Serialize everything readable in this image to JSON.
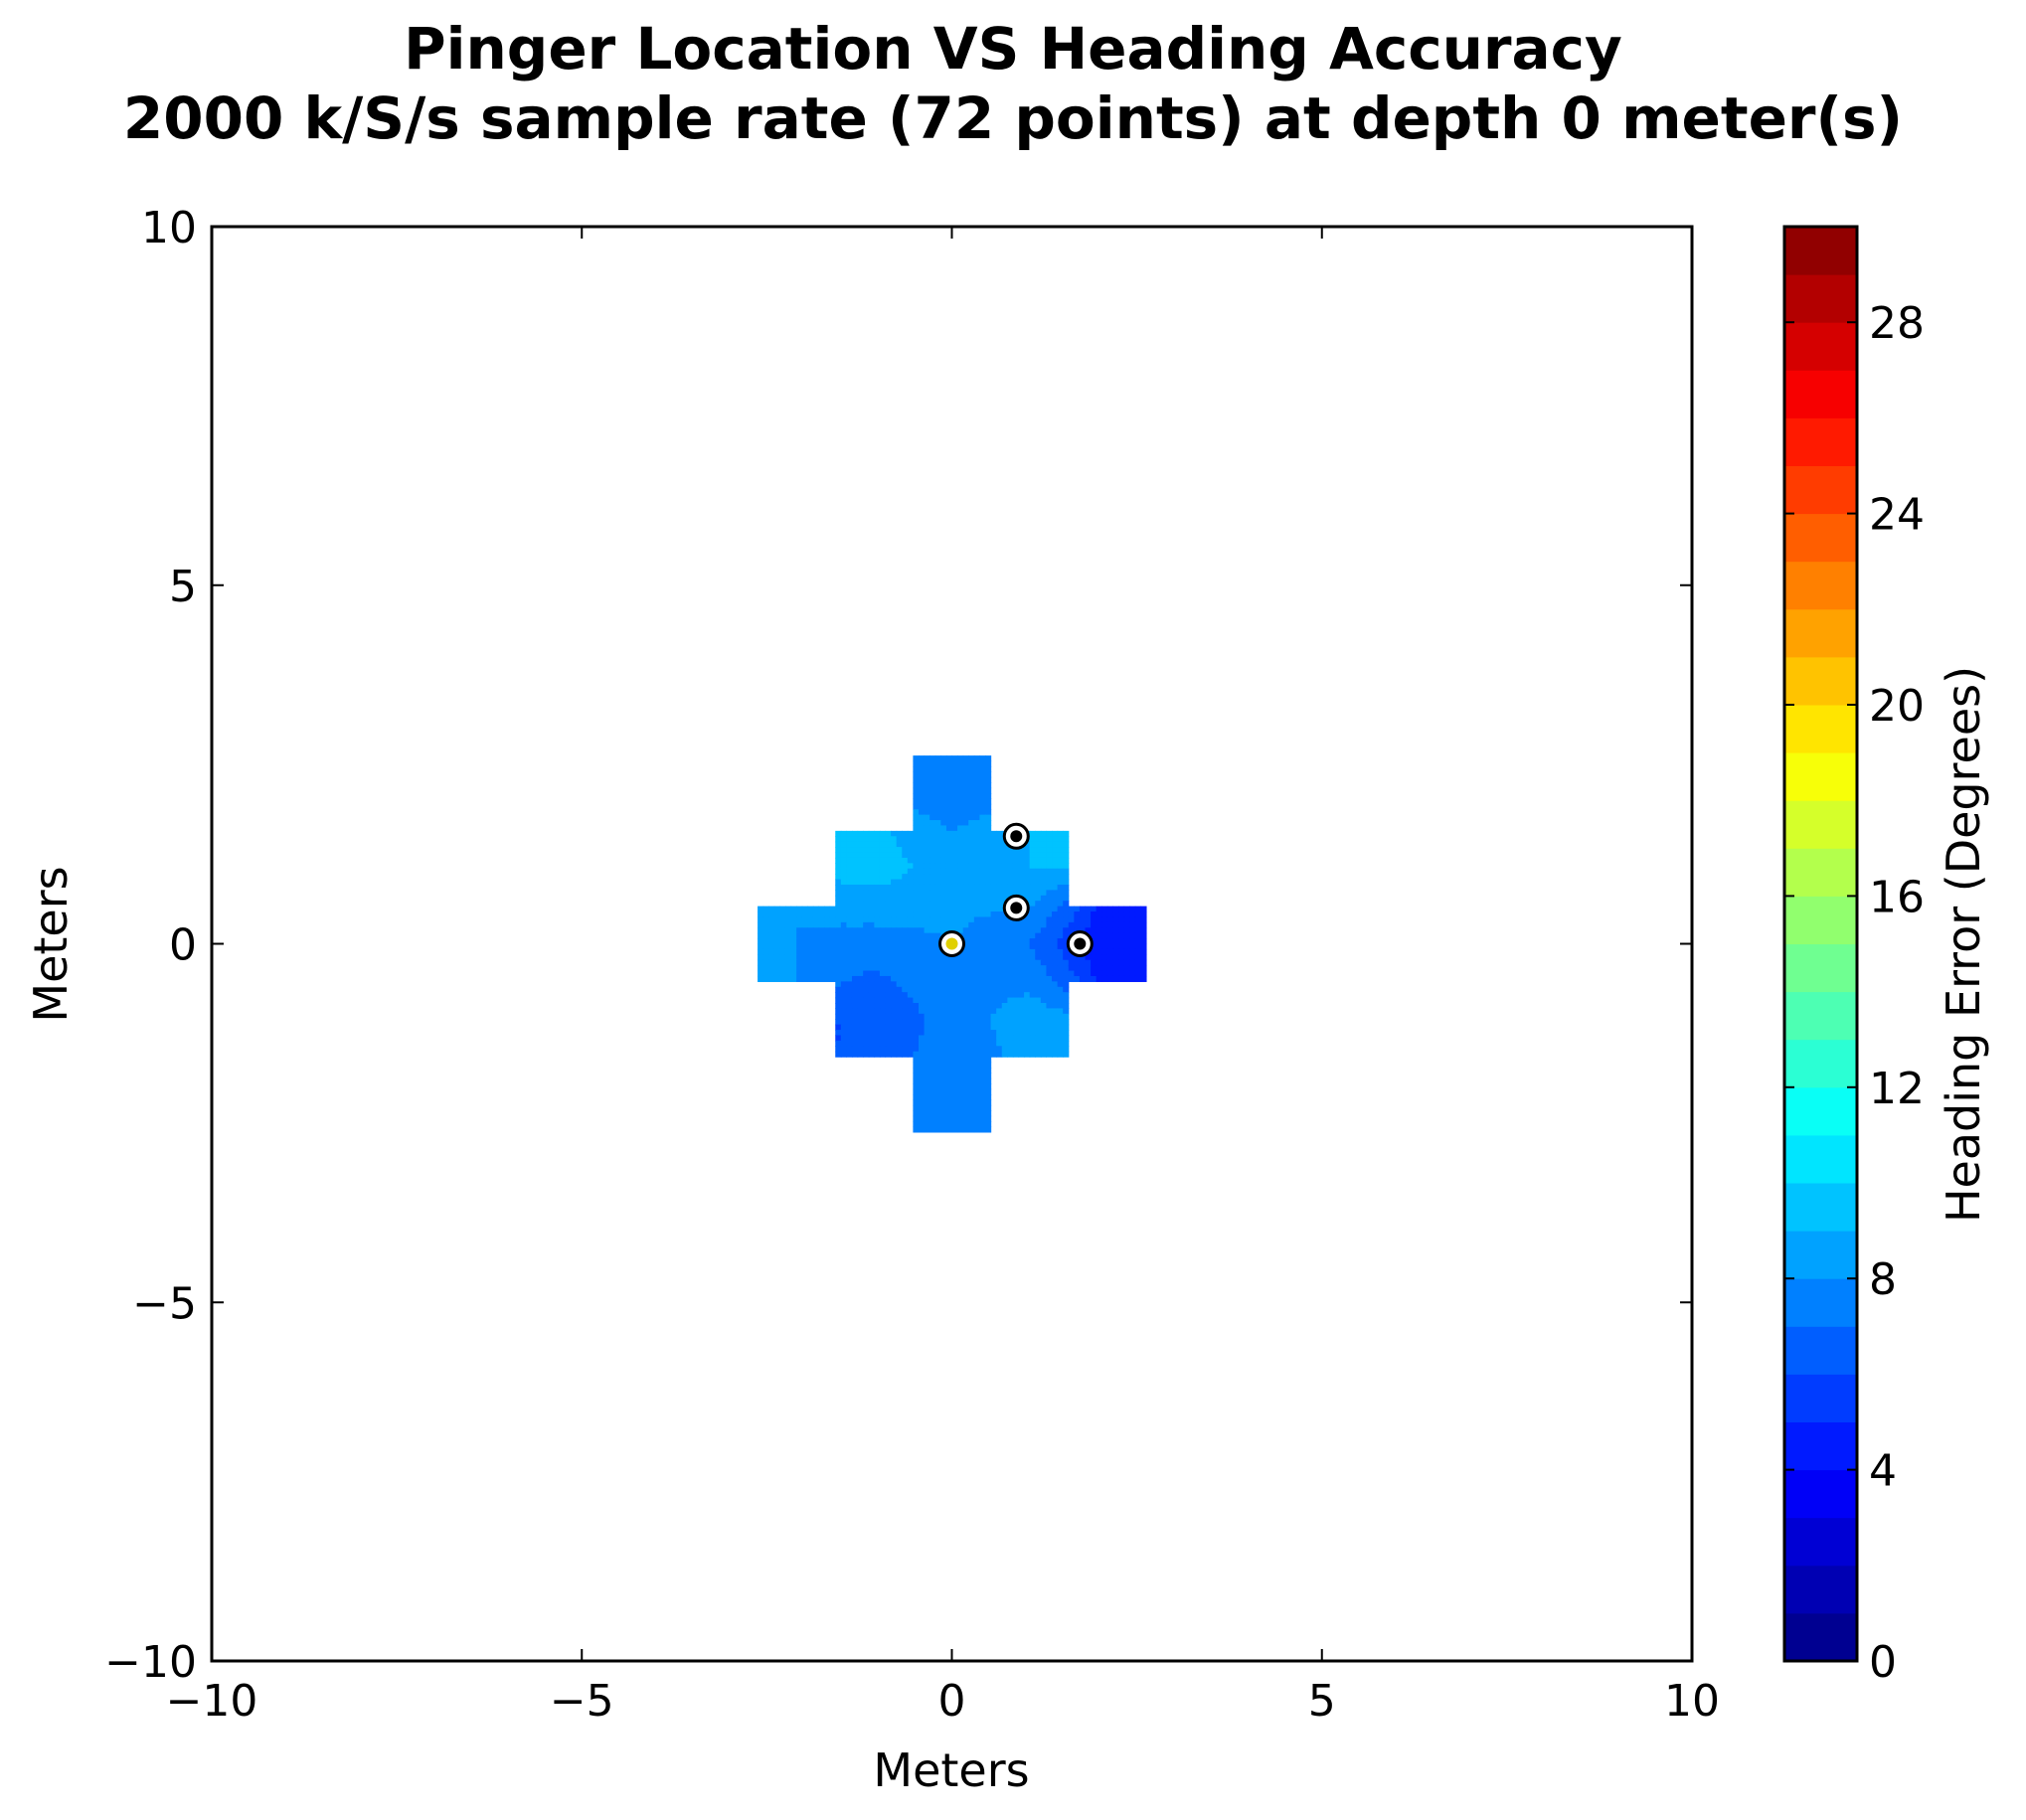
{
  "chart_data": {
    "type": "contour",
    "title": "Pinger Location VS Heading Accuracy",
    "subtitle": "2000 k/S/s sample rate (72 points) at depth 0 meter(s)",
    "xlabel": "Meters",
    "ylabel": "Meters",
    "xlim": [
      -10,
      10
    ],
    "ylim": [
      -10,
      10
    ],
    "x_ticks": [
      -10,
      -5,
      0,
      5,
      10
    ],
    "y_ticks": [
      -10,
      -5,
      0,
      5,
      10
    ],
    "x_tick_labels": [
      "−10",
      "−5",
      "0",
      "5",
      "10"
    ],
    "y_tick_labels": [
      "−10",
      "−5",
      "0",
      "5",
      "10"
    ],
    "grid": false,
    "colorbar": {
      "label": "Heading Error (Degrees)",
      "range": [
        0,
        30
      ],
      "levels": 31,
      "ticks": [
        0,
        4,
        8,
        12,
        16,
        20,
        24,
        28
      ],
      "tick_labels": [
        "0",
        "4",
        "8",
        "12",
        "16",
        "20",
        "24",
        "28"
      ],
      "colormap": "jet"
    },
    "grid_x": [
      -2.1,
      -1.05,
      0,
      1.05,
      2.1
    ],
    "grid_y": [
      2.1,
      1.05,
      0,
      -1.05,
      -2.1
    ],
    "heading_error": [
      [
        null,
        null,
        7.5,
        null,
        null
      ],
      [
        null,
        9.5,
        8.5,
        9.0,
        null
      ],
      [
        8.0,
        7.5,
        8.0,
        7.0,
        4.0
      ],
      [
        null,
        6.0,
        7.5,
        8.5,
        null
      ],
      [
        null,
        null,
        7.5,
        null,
        null
      ]
    ],
    "hydrophones": [
      {
        "x": 0,
        "y": 0,
        "color": "#e0d000"
      },
      {
        "x": 0.87,
        "y": 0.5,
        "color": "#000000"
      },
      {
        "x": 0.87,
        "y": 1.5,
        "color": "#000000"
      },
      {
        "x": 1.73,
        "y": 0,
        "color": "#000000"
      }
    ]
  }
}
